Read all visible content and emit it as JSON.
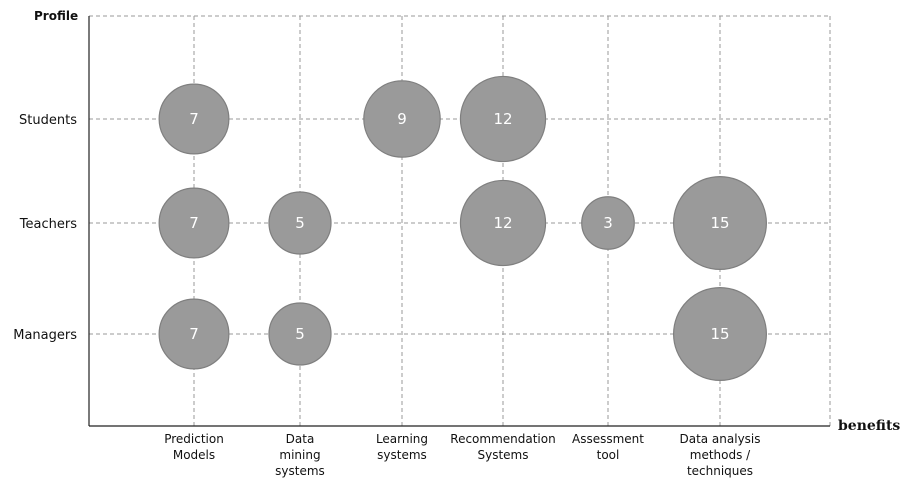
{
  "chart_data": {
    "type": "bubble",
    "ylabel": "Profile",
    "xlabel": "benefits",
    "y_categories": [
      "Students",
      "Teachers",
      "Managers"
    ],
    "x_categories": [
      [
        "Prediction",
        "Models"
      ],
      [
        "Data",
        "mining",
        "systems"
      ],
      [
        "Learning",
        "systems"
      ],
      [
        "Recommendation",
        "Systems"
      ],
      [
        "Assessment",
        "tool"
      ],
      [
        "Data analysis",
        "methods /",
        "techniques"
      ]
    ],
    "points": [
      {
        "x": 0,
        "y": 0,
        "value": 7
      },
      {
        "x": 2,
        "y": 0,
        "value": 9
      },
      {
        "x": 3,
        "y": 0,
        "value": 12
      },
      {
        "x": 0,
        "y": 1,
        "value": 7
      },
      {
        "x": 1,
        "y": 1,
        "value": 5
      },
      {
        "x": 3,
        "y": 1,
        "value": 12
      },
      {
        "x": 4,
        "y": 1,
        "value": 3
      },
      {
        "x": 5,
        "y": 1,
        "value": 15
      },
      {
        "x": 0,
        "y": 2,
        "value": 7
      },
      {
        "x": 1,
        "y": 2,
        "value": 5
      },
      {
        "x": 5,
        "y": 2,
        "value": 15
      }
    ],
    "grid": true
  }
}
